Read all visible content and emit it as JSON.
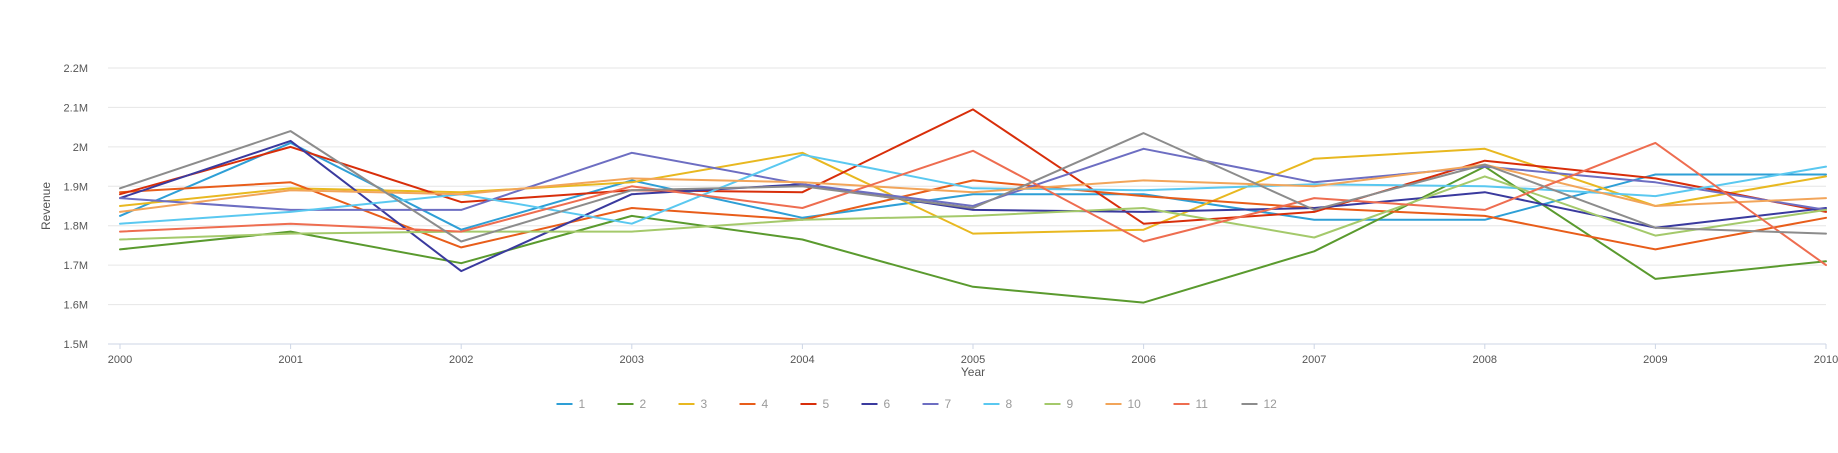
{
  "chart_data": {
    "type": "line",
    "xlabel": "Year",
    "ylabel": "Revenue",
    "ylim": [
      1500000,
      2200000
    ],
    "y_ticks": [
      {
        "value": 1500000,
        "label": "1.5M"
      },
      {
        "value": 1600000,
        "label": "1.6M"
      },
      {
        "value": 1700000,
        "label": "1.7M"
      },
      {
        "value": 1800000,
        "label": "1.8M"
      },
      {
        "value": 1900000,
        "label": "1.9M"
      },
      {
        "value": 2000000,
        "label": "2M"
      },
      {
        "value": 2100000,
        "label": "2.1M"
      },
      {
        "value": 2200000,
        "label": "2.2M"
      }
    ],
    "x": [
      "2000",
      "2001",
      "2002",
      "2003",
      "2004",
      "2005",
      "2006",
      "2007",
      "2008",
      "2009",
      "2010"
    ],
    "grid": true,
    "legend_position": "bottom",
    "series": [
      {
        "name": "1",
        "color": "#2e9fd6",
        "values": [
          1825000,
          2010000,
          1790000,
          1915000,
          1820000,
          1880000,
          1880000,
          1815000,
          1815000,
          1930000,
          1930000
        ]
      },
      {
        "name": "2",
        "color": "#5a9a2e",
        "values": [
          1740000,
          1785000,
          1705000,
          1825000,
          1765000,
          1645000,
          1605000,
          1735000,
          1950000,
          1665000,
          1710000
        ]
      },
      {
        "name": "3",
        "color": "#e8b820",
        "values": [
          1850000,
          1895000,
          1885000,
          1910000,
          1985000,
          1780000,
          1790000,
          1970000,
          1995000,
          1850000,
          1925000
        ]
      },
      {
        "name": "4",
        "color": "#e85d1a",
        "values": [
          1885000,
          1910000,
          1745000,
          1845000,
          1815000,
          1915000,
          1875000,
          1845000,
          1825000,
          1740000,
          1820000
        ]
      },
      {
        "name": "5",
        "color": "#d82e0a",
        "values": [
          1880000,
          2000000,
          1860000,
          1890000,
          1885000,
          2095000,
          1805000,
          1835000,
          1965000,
          1920000,
          1835000
        ]
      },
      {
        "name": "6",
        "color": "#3a3a9e",
        "values": [
          1870000,
          2015000,
          1685000,
          1880000,
          1905000,
          1840000,
          1835000,
          1845000,
          1885000,
          1795000,
          1845000
        ]
      },
      {
        "name": "7",
        "color": "#6d6ec2",
        "values": [
          1870000,
          1840000,
          1840000,
          1985000,
          1905000,
          1850000,
          1995000,
          1910000,
          1950000,
          1910000,
          1840000
        ]
      },
      {
        "name": "8",
        "color": "#5ac8f0",
        "values": [
          1805000,
          1835000,
          1880000,
          1805000,
          1980000,
          1895000,
          1890000,
          1905000,
          1900000,
          1875000,
          1950000
        ]
      },
      {
        "name": "9",
        "color": "#a4c96b",
        "values": [
          1765000,
          1780000,
          1785000,
          1785000,
          1815000,
          1825000,
          1845000,
          1770000,
          1925000,
          1775000,
          1840000
        ]
      },
      {
        "name": "10",
        "color": "#f2a55a",
        "values": [
          1835000,
          1890000,
          1880000,
          1920000,
          1910000,
          1885000,
          1915000,
          1900000,
          1955000,
          1850000,
          1870000
        ]
      },
      {
        "name": "11",
        "color": "#ee6d50",
        "values": [
          1785000,
          1805000,
          1785000,
          1900000,
          1845000,
          1990000,
          1760000,
          1870000,
          1840000,
          2010000,
          1700000
        ]
      },
      {
        "name": "12",
        "color": "#8c8c8c",
        "values": [
          1895000,
          2040000,
          1760000,
          1890000,
          1900000,
          1845000,
          2035000,
          1840000,
          1955000,
          1795000,
          1780000
        ]
      }
    ]
  }
}
